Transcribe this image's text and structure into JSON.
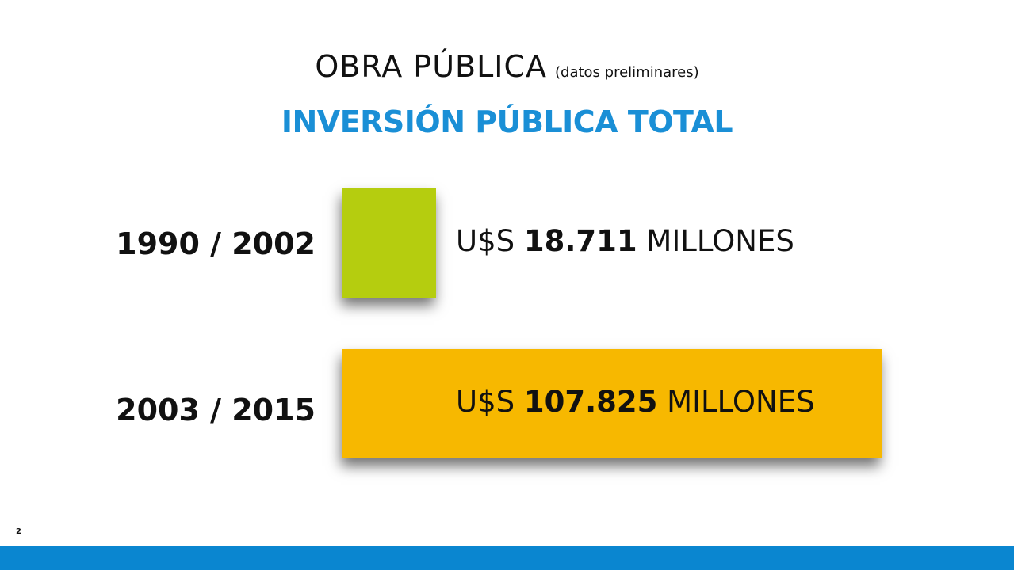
{
  "title": "OBRA PÚBLICA",
  "title_note": "(datos preliminares)",
  "subtitle": "INVERSIÓN PÚBLICA TOTAL",
  "slide_number": "2",
  "colors": {
    "accent": "#1a8fd6",
    "footer": "#0a86d0",
    "series_1": "#b5cd0f",
    "series_2": "#f7b800"
  },
  "chart_data": {
    "type": "bar",
    "orientation": "horizontal",
    "categories": [
      "1990 / 2002",
      "2003 / 2015"
    ],
    "values": [
      18711,
      107825
    ],
    "value_labels": [
      {
        "prefix": "U$S",
        "number": "18.711",
        "suffix": "MILLONES"
      },
      {
        "prefix": "U$S",
        "number": "107.825",
        "suffix": "MILLONES"
      }
    ],
    "bar_colors": [
      "#b5cd0f",
      "#f7b800"
    ],
    "title": "INVERSIÓN PÚBLICA TOTAL",
    "xlabel": "",
    "ylabel": "",
    "grid": false,
    "legend": false
  }
}
